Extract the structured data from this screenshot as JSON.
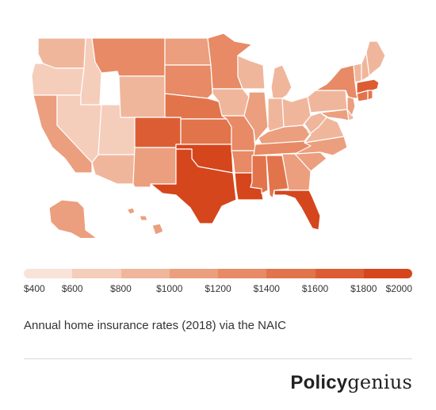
{
  "chart_data": {
    "type": "choropleth",
    "caption": "Annual home insurance rates (2018) via the NAIC",
    "legend": {
      "ticks": [
        "$400",
        "$600",
        "$800",
        "$1000",
        "$1200",
        "$1400",
        "$1600",
        "$1800",
        "$2000"
      ],
      "scale_min": 400,
      "scale_max": 2000
    },
    "palette": [
      "#f9e3d9",
      "#f5cdbb",
      "#f0b69c",
      "#eb9f7e",
      "#e78a65",
      "#e2744c",
      "#dc5d34",
      "#d5461d"
    ],
    "states": [
      {
        "name": "Washington",
        "rate": 850
      },
      {
        "name": "Oregon",
        "rate": 650
      },
      {
        "name": "California",
        "rate": 1150
      },
      {
        "name": "Nevada",
        "rate": 650
      },
      {
        "name": "Idaho",
        "rate": 650
      },
      {
        "name": "Utah",
        "rate": 650
      },
      {
        "name": "Arizona",
        "rate": 900
      },
      {
        "name": "Montana",
        "rate": 1250
      },
      {
        "name": "Wyoming",
        "rate": 950
      },
      {
        "name": "Colorado",
        "rate": 1650
      },
      {
        "name": "New Mexico",
        "rate": 1050
      },
      {
        "name": "North Dakota",
        "rate": 1150
      },
      {
        "name": "South Dakota",
        "rate": 1200
      },
      {
        "name": "Nebraska",
        "rate": 1500
      },
      {
        "name": "Kansas",
        "rate": 1550
      },
      {
        "name": "Oklahoma",
        "rate": 1950
      },
      {
        "name": "Texas",
        "rate": 1950
      },
      {
        "name": "Minnesota",
        "rate": 1350
      },
      {
        "name": "Iowa",
        "rate": 950
      },
      {
        "name": "Missouri",
        "rate": 1250
      },
      {
        "name": "Arkansas",
        "rate": 1350
      },
      {
        "name": "Louisiana",
        "rate": 1950
      },
      {
        "name": "Wisconsin",
        "rate": 850
      },
      {
        "name": "Illinois",
        "rate": 1100
      },
      {
        "name": "Michigan",
        "rate": 950
      },
      {
        "name": "Indiana",
        "rate": 950
      },
      {
        "name": "Ohio",
        "rate": 850
      },
      {
        "name": "Kentucky",
        "rate": 1100
      },
      {
        "name": "Tennessee",
        "rate": 1200
      },
      {
        "name": "Mississippi",
        "rate": 1450
      },
      {
        "name": "Alabama",
        "rate": 1400
      },
      {
        "name": "Georgia",
        "rate": 1150
      },
      {
        "name": "Florida",
        "rate": 1950
      },
      {
        "name": "South Carolina",
        "rate": 1150
      },
      {
        "name": "North Carolina",
        "rate": 1000
      },
      {
        "name": "Virginia",
        "rate": 950
      },
      {
        "name": "West Virginia",
        "rate": 800
      },
      {
        "name": "Pennsylvania",
        "rate": 850
      },
      {
        "name": "New York",
        "rate": 1250
      },
      {
        "name": "Maryland",
        "rate": 1050
      },
      {
        "name": "Delaware",
        "rate": 850
      },
      {
        "name": "New Jersey",
        "rate": 1150
      },
      {
        "name": "Connecticut",
        "rate": 1450
      },
      {
        "name": "Rhode Island",
        "rate": 1400
      },
      {
        "name": "Massachusetts",
        "rate": 1600
      },
      {
        "name": "Vermont",
        "rate": 900
      },
      {
        "name": "New Hampshire",
        "rate": 950
      },
      {
        "name": "Maine",
        "rate": 850
      },
      {
        "name": "Alaska",
        "rate": 1000
      },
      {
        "name": "Hawaii",
        "rate": 1000
      }
    ]
  },
  "brand": {
    "part1": "Policy",
    "part2": "genius"
  }
}
